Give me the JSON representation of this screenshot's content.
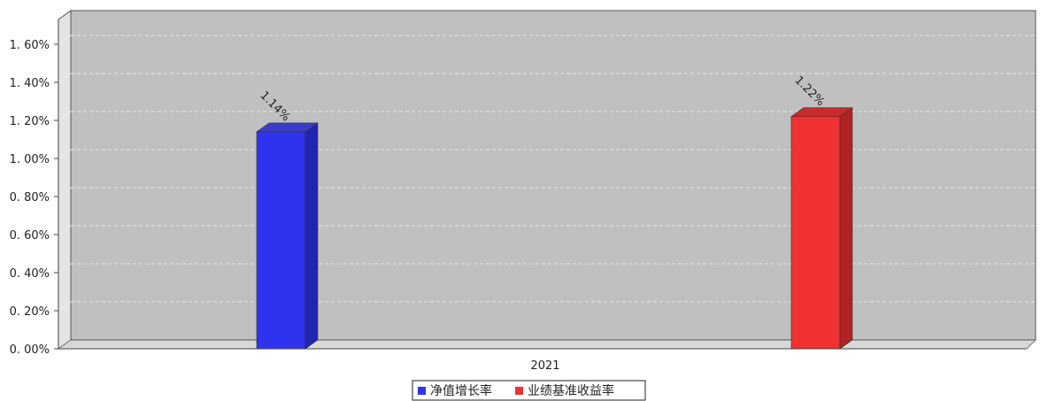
{
  "chart_data": {
    "type": "bar",
    "categories": [
      "2021"
    ],
    "series": [
      {
        "name": "净值增长率",
        "values": [
          1.14
        ],
        "value_label": "1.14%",
        "color": "#2f33ee",
        "side_color": "#2124b3",
        "top_color": "#3a3ec6"
      },
      {
        "name": "业绩基准收益率",
        "values": [
          1.22
        ],
        "value_label": "1.22%",
        "color": "#ef3131",
        "side_color": "#b12222",
        "top_color": "#c82b2b"
      }
    ],
    "ylim": [
      0,
      1.7
    ],
    "yticks": [
      0,
      0.2,
      0.4,
      0.6,
      0.8,
      1.0,
      1.2,
      1.4,
      1.6
    ],
    "ytick_labels": [
      "0. 00%",
      "0. 20%",
      "0. 40%",
      "0. 60%",
      "0. 80%",
      "1. 00%",
      "1. 20%",
      "1. 40%",
      "1. 60%"
    ],
    "grid": true,
    "legend_position": "bottom-center",
    "plot_background": "#c0c0c0"
  }
}
